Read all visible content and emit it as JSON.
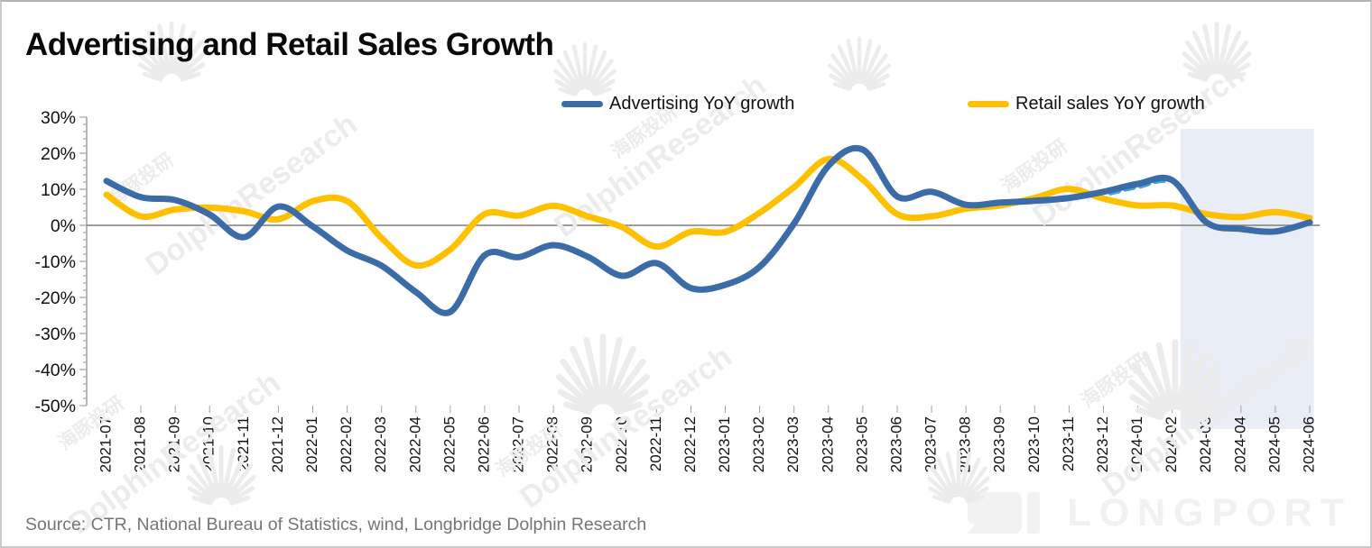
{
  "title": "Advertising and Retail Sales Growth",
  "source_note": "Source: CTR, National Bureau of Statistics, wind, Longbridge Dolphin Research",
  "watermark": {
    "logo_text": "LONGPORT",
    "diagonal_text_en": "DolphinResearch",
    "diagonal_text_cn": "海豚投研"
  },
  "colors": {
    "advertising": "#3B6CA8",
    "retail": "#FFC000",
    "forecast_dash": "#3FA9DC",
    "highlight": "#E9EDF6",
    "zero_line": "#7F7F7F",
    "axis": "#A3A3A3",
    "tick_label": "#111111",
    "watermark_gray": "#ECECEC"
  },
  "chart_data": {
    "type": "line",
    "x": [
      "2021-07",
      "2021-08",
      "2021-09",
      "2021-10",
      "2021-11",
      "2021-12",
      "2022-01",
      "2022-02",
      "2022-03",
      "2022-04",
      "2022-05",
      "2022-06",
      "2022-07",
      "2022-08",
      "2022-09",
      "2022-10",
      "2022-11",
      "2022-12",
      "2023-01",
      "2023-02",
      "2023-03",
      "2023-04",
      "2023-05",
      "2023-06",
      "2023-07",
      "2023-08",
      "2023-09",
      "2023-10",
      "2023-11",
      "2023-12",
      "2024-01",
      "2024-02",
      "2024-03",
      "2024-04",
      "2024-05",
      "2024-06"
    ],
    "series": [
      {
        "name": "Advertising YoY growth",
        "color": "#3B6CA8",
        "values": [
          12.3,
          7.8,
          7.0,
          3.0,
          -3.3,
          5.2,
          -0.3,
          -7.0,
          -11.2,
          -18.5,
          -24.0,
          -8.3,
          -8.8,
          -5.5,
          -8.7,
          -14.0,
          -10.5,
          -17.4,
          -16.5,
          -11.5,
          0.5,
          16.5,
          21.0,
          8.0,
          9.3,
          5.7,
          6.3,
          6.8,
          7.6,
          9.3,
          11.5,
          12.5,
          0.8,
          -1.0,
          -1.7,
          0.8
        ]
      },
      {
        "name": "Retail sales YoY growth",
        "color": "#FFC000",
        "values": [
          8.5,
          2.5,
          4.4,
          4.9,
          3.9,
          1.7,
          6.7,
          6.7,
          -3.5,
          -11.1,
          -6.7,
          3.1,
          2.7,
          5.4,
          2.5,
          -0.5,
          -5.9,
          -1.8,
          -1.8,
          3.5,
          10.6,
          18.4,
          12.7,
          3.1,
          2.5,
          4.6,
          5.5,
          7.6,
          10.1,
          7.4,
          5.5,
          5.5,
          3.1,
          2.3,
          3.7,
          2.0
        ]
      }
    ],
    "forecast_overlay": {
      "name": "advertising-forecast-dash",
      "color": "#3FA9DC",
      "from": "2023-12",
      "to": "2024-02"
    },
    "highlight_region": {
      "from": "2024-03",
      "to": "2024-06",
      "color": "#E9EDF6"
    },
    "ylim": [
      -50,
      30
    ],
    "y_major_step": 10,
    "y_minor_step": 2,
    "y_tick_labels": [
      "30%",
      "20%",
      "10%",
      "0%",
      "-10%",
      "-20%",
      "-30%",
      "-40%",
      "-50%"
    ],
    "legend_position": "top",
    "grid": false
  }
}
